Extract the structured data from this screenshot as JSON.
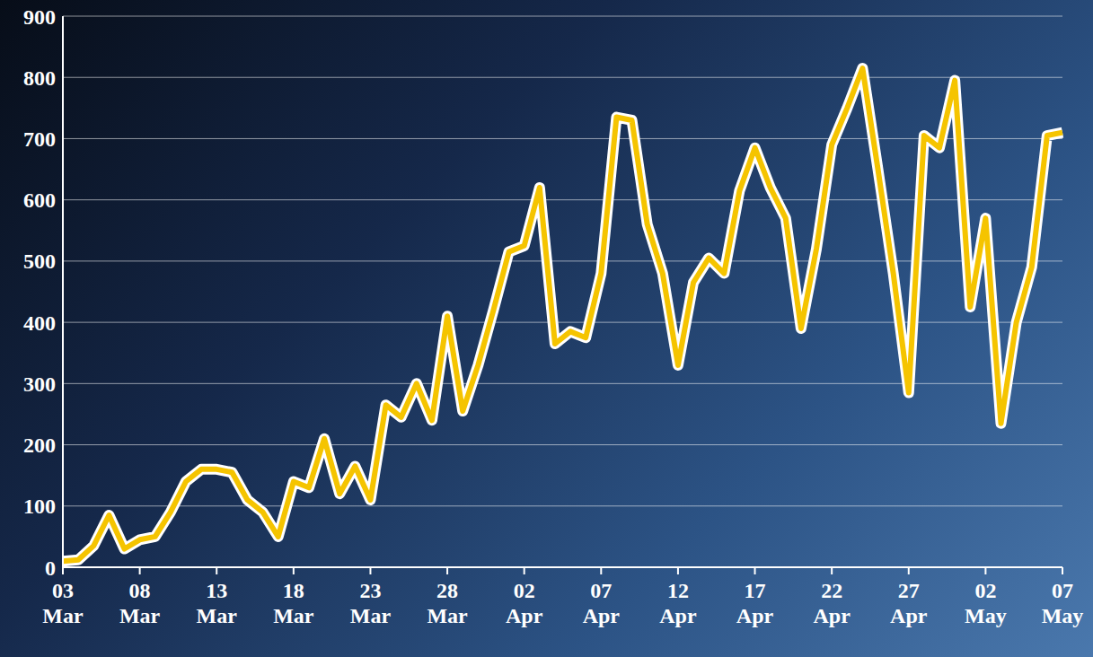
{
  "chart_data": {
    "type": "line",
    "categories": [
      "03 Mar",
      null,
      null,
      null,
      null,
      "08 Mar",
      null,
      null,
      null,
      null,
      "13 Mar",
      null,
      null,
      null,
      null,
      "18 Mar",
      null,
      null,
      null,
      null,
      "23 Mar",
      null,
      null,
      null,
      null,
      "28 Mar",
      null,
      null,
      null,
      null,
      "02 Apr",
      null,
      null,
      null,
      null,
      "07 Apr",
      null,
      null,
      null,
      null,
      "12 Apr",
      null,
      null,
      null,
      null,
      "17 Apr",
      null,
      null,
      null,
      null,
      "22 Apr",
      null,
      null,
      null,
      null,
      "27 Apr",
      null,
      null,
      null,
      null,
      "02 May",
      null,
      null,
      null,
      null,
      "07 May"
    ],
    "values": [
      10,
      12,
      35,
      85,
      30,
      45,
      50,
      90,
      140,
      160,
      160,
      155,
      110,
      90,
      50,
      140,
      130,
      210,
      120,
      165,
      110,
      265,
      245,
      300,
      240,
      410,
      255,
      330,
      420,
      515,
      525,
      620,
      365,
      385,
      375,
      480,
      735,
      730,
      560,
      480,
      330,
      465,
      505,
      480,
      615,
      685,
      620,
      570,
      390,
      520,
      690,
      750,
      815,
      650,
      480,
      285,
      705,
      685,
      795,
      425,
      570,
      235,
      400,
      490,
      705,
      710
    ],
    "color": "#f5c400",
    "ylim": [
      0,
      900
    ],
    "yticks": [
      0,
      100,
      200,
      300,
      400,
      500,
      600,
      700,
      800,
      900
    ],
    "grid": true
  }
}
